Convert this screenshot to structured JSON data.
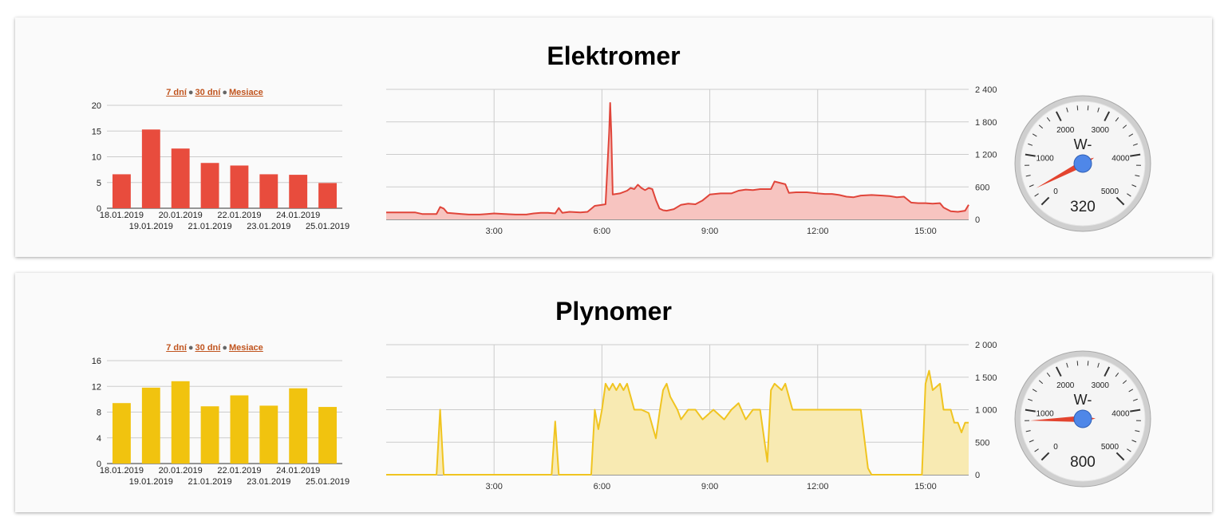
{
  "range_links": {
    "days7": "7 dní",
    "days30": "30 dní",
    "months": "Mesiace"
  },
  "chart_data": [
    {
      "id": "elektromer-daily",
      "type": "bar",
      "title": "",
      "categories": [
        "18.01.2019",
        "19.01.2019",
        "20.01.2019",
        "21.01.2019",
        "22.01.2019",
        "23.01.2019",
        "24.01.2019",
        "25.01.2019"
      ],
      "values": [
        6.6,
        15.3,
        11.6,
        8.8,
        8.3,
        6.6,
        6.5,
        4.9
      ],
      "ylim": [
        0,
        20
      ],
      "yticks": [
        0,
        5,
        10,
        15,
        20
      ],
      "color": "#e84c3d",
      "grid": true
    },
    {
      "id": "elektromer-today",
      "type": "area",
      "xlim": [
        0,
        16.2
      ],
      "xticks": [
        {
          "v": 3,
          "label": "3:00"
        },
        {
          "v": 6,
          "label": "6:00"
        },
        {
          "v": 9,
          "label": "9:00"
        },
        {
          "v": 12,
          "label": "12:00"
        },
        {
          "v": 15,
          "label": "15:00"
        }
      ],
      "ylim": [
        0,
        2400
      ],
      "yticks": [
        {
          "v": 0,
          "label": "0"
        },
        {
          "v": 600,
          "label": "600"
        },
        {
          "v": 1200,
          "label": "1 200"
        },
        {
          "v": 1800,
          "label": "1 800"
        },
        {
          "v": 2400,
          "label": "2 400"
        }
      ],
      "color": "#e0453a",
      "fill": "#f7c4c0",
      "points": [
        [
          0,
          130
        ],
        [
          0.8,
          130
        ],
        [
          1,
          100
        ],
        [
          1.4,
          100
        ],
        [
          1.5,
          230
        ],
        [
          1.6,
          200
        ],
        [
          1.7,
          120
        ],
        [
          1.9,
          110
        ],
        [
          2.1,
          100
        ],
        [
          2.3,
          90
        ],
        [
          2.6,
          90
        ],
        [
          2.8,
          100
        ],
        [
          3,
          110
        ],
        [
          3.3,
          100
        ],
        [
          3.6,
          90
        ],
        [
          3.9,
          90
        ],
        [
          4.1,
          110
        ],
        [
          4.3,
          120
        ],
        [
          4.5,
          120
        ],
        [
          4.7,
          110
        ],
        [
          4.8,
          210
        ],
        [
          4.9,
          120
        ],
        [
          5.1,
          140
        ],
        [
          5.4,
          130
        ],
        [
          5.6,
          140
        ],
        [
          5.8,
          250
        ],
        [
          6,
          270
        ],
        [
          6.1,
          280
        ],
        [
          6.2,
          1600
        ],
        [
          6.23,
          2150
        ],
        [
          6.26,
          1600
        ],
        [
          6.3,
          460
        ],
        [
          6.5,
          480
        ],
        [
          6.7,
          530
        ],
        [
          6.8,
          580
        ],
        [
          6.9,
          560
        ],
        [
          7,
          640
        ],
        [
          7.1,
          580
        ],
        [
          7.2,
          540
        ],
        [
          7.3,
          580
        ],
        [
          7.4,
          560
        ],
        [
          7.5,
          360
        ],
        [
          7.6,
          200
        ],
        [
          7.7,
          170
        ],
        [
          7.8,
          160
        ],
        [
          8,
          190
        ],
        [
          8.2,
          270
        ],
        [
          8.4,
          290
        ],
        [
          8.6,
          280
        ],
        [
          8.8,
          350
        ],
        [
          9,
          460
        ],
        [
          9.3,
          480
        ],
        [
          9.6,
          480
        ],
        [
          9.8,
          530
        ],
        [
          10,
          550
        ],
        [
          10.2,
          540
        ],
        [
          10.4,
          560
        ],
        [
          10.7,
          560
        ],
        [
          10.8,
          700
        ],
        [
          11.1,
          650
        ],
        [
          11.2,
          490
        ],
        [
          11.4,
          500
        ],
        [
          11.7,
          500
        ],
        [
          12,
          480
        ],
        [
          12.2,
          470
        ],
        [
          12.4,
          470
        ],
        [
          12.6,
          450
        ],
        [
          12.8,
          420
        ],
        [
          13,
          410
        ],
        [
          13.2,
          440
        ],
        [
          13.5,
          450
        ],
        [
          13.8,
          440
        ],
        [
          14,
          430
        ],
        [
          14.2,
          410
        ],
        [
          14.4,
          420
        ],
        [
          14.6,
          310
        ],
        [
          14.8,
          300
        ],
        [
          15,
          300
        ],
        [
          15.2,
          290
        ],
        [
          15.4,
          300
        ],
        [
          15.5,
          220
        ],
        [
          15.7,
          150
        ],
        [
          15.9,
          140
        ],
        [
          16.1,
          160
        ],
        [
          16.2,
          270
        ]
      ]
    },
    {
      "id": "elektromer-gauge",
      "type": "gauge",
      "label": "W-",
      "min": 0,
      "max": 5000,
      "value": 320,
      "value_label": "320",
      "ticks": [
        {
          "v": 0,
          "label": "0"
        },
        {
          "v": 1000,
          "label": "1000"
        },
        {
          "v": 2000,
          "label": "2000"
        },
        {
          "v": 3000,
          "label": "3000"
        },
        {
          "v": 4000,
          "label": "4000"
        },
        {
          "v": 5000,
          "label": "5000"
        }
      ],
      "needle_color": "#e3442f",
      "hub_color": "#4f87e8"
    },
    {
      "id": "plynomer-daily",
      "type": "bar",
      "title": "",
      "categories": [
        "18.01.2019",
        "19.01.2019",
        "20.01.2019",
        "21.01.2019",
        "22.01.2019",
        "23.01.2019",
        "24.01.2019",
        "25.01.2019"
      ],
      "values": [
        9.4,
        11.8,
        12.8,
        8.9,
        10.6,
        9.0,
        11.7,
        8.8
      ],
      "ylim": [
        0,
        16
      ],
      "yticks": [
        0,
        4,
        8,
        12,
        16
      ],
      "color": "#f1c30f",
      "grid": true
    },
    {
      "id": "plynomer-today",
      "type": "area",
      "xlim": [
        0,
        16.2
      ],
      "xticks": [
        {
          "v": 3,
          "label": "3:00"
        },
        {
          "v": 6,
          "label": "6:00"
        },
        {
          "v": 9,
          "label": "9:00"
        },
        {
          "v": 12,
          "label": "12:00"
        },
        {
          "v": 15,
          "label": "15:00"
        }
      ],
      "ylim": [
        0,
        2000
      ],
      "yticks": [
        {
          "v": 0,
          "label": "0"
        },
        {
          "v": 500,
          "label": "500"
        },
        {
          "v": 1000,
          "label": "1 000"
        },
        {
          "v": 1500,
          "label": "1 500"
        },
        {
          "v": 2000,
          "label": "2 000"
        }
      ],
      "color": "#f0c420",
      "fill": "#f8eab2",
      "points": [
        [
          0,
          0
        ],
        [
          1.4,
          0
        ],
        [
          1.5,
          1000
        ],
        [
          1.6,
          0
        ],
        [
          4.6,
          0
        ],
        [
          4.7,
          820
        ],
        [
          4.8,
          0
        ],
        [
          5.7,
          0
        ],
        [
          5.8,
          1000
        ],
        [
          5.9,
          700
        ],
        [
          6,
          1000
        ],
        [
          6.1,
          1400
        ],
        [
          6.2,
          1300
        ],
        [
          6.3,
          1400
        ],
        [
          6.4,
          1300
        ],
        [
          6.5,
          1400
        ],
        [
          6.6,
          1300
        ],
        [
          6.7,
          1400
        ],
        [
          6.8,
          1200
        ],
        [
          6.9,
          1000
        ],
        [
          7.1,
          1000
        ],
        [
          7.3,
          950
        ],
        [
          7.5,
          560
        ],
        [
          7.6,
          950
        ],
        [
          7.7,
          1300
        ],
        [
          7.8,
          1400
        ],
        [
          7.9,
          1200
        ],
        [
          8.1,
          1000
        ],
        [
          8.2,
          850
        ],
        [
          8.4,
          1000
        ],
        [
          8.6,
          1000
        ],
        [
          8.8,
          850
        ],
        [
          9.1,
          1000
        ],
        [
          9.4,
          850
        ],
        [
          9.6,
          1000
        ],
        [
          9.8,
          1100
        ],
        [
          10,
          850
        ],
        [
          10.2,
          1000
        ],
        [
          10.4,
          1000
        ],
        [
          10.6,
          200
        ],
        [
          10.7,
          1300
        ],
        [
          10.8,
          1400
        ],
        [
          11,
          1300
        ],
        [
          11.1,
          1400
        ],
        [
          11.3,
          1000
        ],
        [
          11.6,
          1000
        ],
        [
          11.8,
          1000
        ],
        [
          12,
          1000
        ],
        [
          12.2,
          1000
        ],
        [
          12.4,
          1000
        ],
        [
          12.6,
          1000
        ],
        [
          12.8,
          1000
        ],
        [
          13,
          1000
        ],
        [
          13.2,
          1000
        ],
        [
          13.4,
          100
        ],
        [
          13.5,
          0
        ],
        [
          14.9,
          0
        ],
        [
          15,
          1400
        ],
        [
          15.1,
          1600
        ],
        [
          15.2,
          1300
        ],
        [
          15.4,
          1400
        ],
        [
          15.5,
          1000
        ],
        [
          15.7,
          1000
        ],
        [
          15.8,
          800
        ],
        [
          15.9,
          800
        ],
        [
          16,
          650
        ],
        [
          16.1,
          800
        ],
        [
          16.2,
          800
        ]
      ]
    },
    {
      "id": "plynomer-gauge",
      "type": "gauge",
      "label": "W-",
      "min": 0,
      "max": 5000,
      "value": 800,
      "value_label": "800",
      "ticks": [
        {
          "v": 0,
          "label": "0"
        },
        {
          "v": 1000,
          "label": "1000"
        },
        {
          "v": 2000,
          "label": "2000"
        },
        {
          "v": 3000,
          "label": "3000"
        },
        {
          "v": 4000,
          "label": "4000"
        },
        {
          "v": 5000,
          "label": "5000"
        }
      ],
      "needle_color": "#e3442f",
      "hub_color": "#4f87e8"
    }
  ],
  "panels": [
    {
      "title": "Elektromer"
    },
    {
      "title": "Plynomer"
    }
  ]
}
